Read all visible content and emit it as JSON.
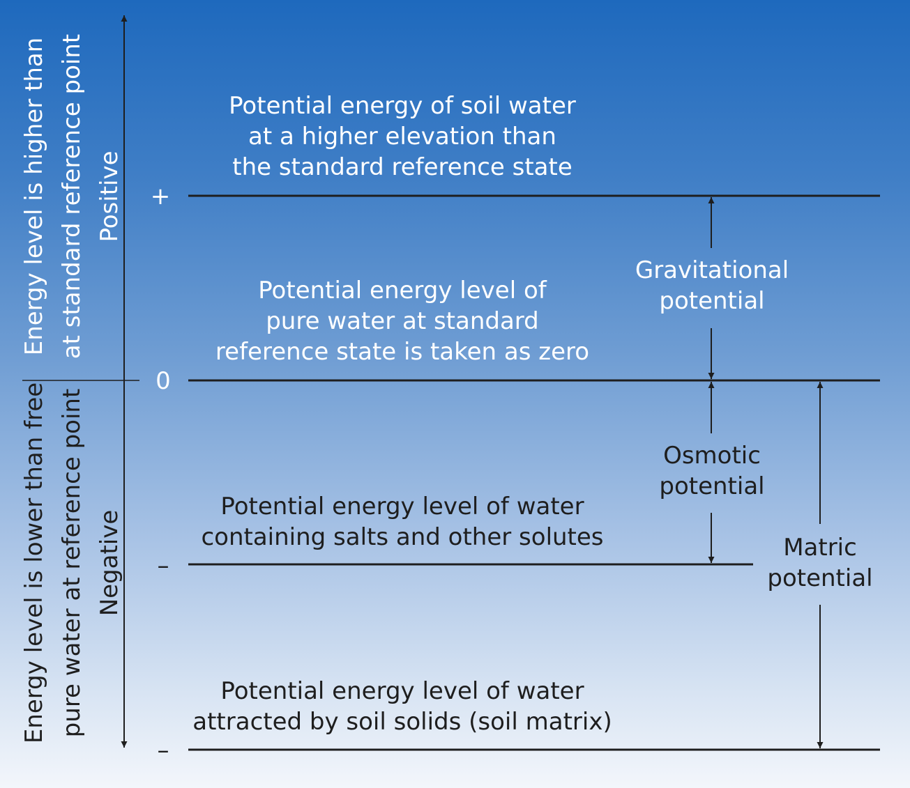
{
  "axis": {
    "upper_label": "Energy level is higher than\nat standard reference point\nPositive",
    "lower_label": "Energy level is lower than free\npure water at reference point\nNegative",
    "plus_sign": "+",
    "zero_sign": "0",
    "minus_sign_1": "–",
    "minus_sign_2": "–"
  },
  "levels": {
    "elevated": "Potential energy of soil water\nat a higher elevation than\nthe standard reference state",
    "reference": "Potential energy level of\npure water at standard\nreference state is taken as zero",
    "solutes": "Potential energy level of water\ncontaining salts and other solutes",
    "matrix": "Potential energy level of water\nattracted by soil solids (soil matrix)"
  },
  "potentials": {
    "gravitational": "Gravitational\npotential",
    "osmotic": "Osmotic\npotential",
    "matric": "Matric\npotential"
  },
  "colors": {
    "line": "#1e1e1e",
    "top": "#1e69bd",
    "bottom": "#f3f6fb"
  }
}
